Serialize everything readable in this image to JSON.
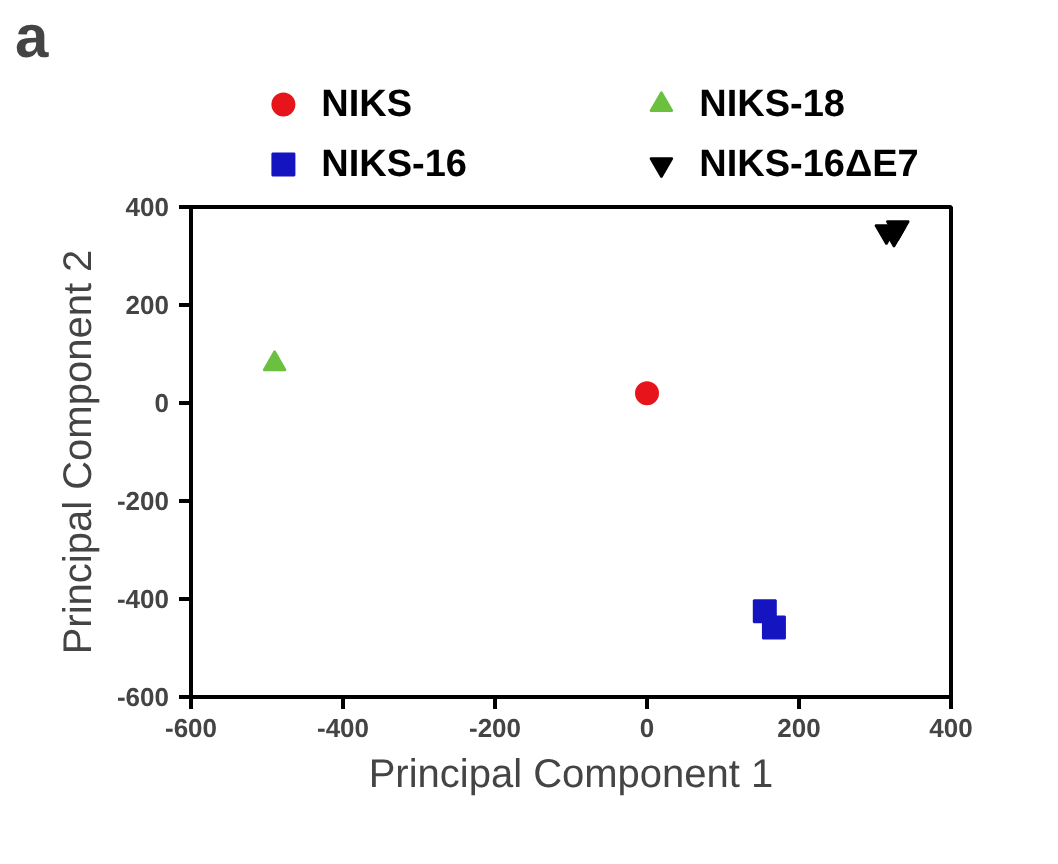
{
  "chart_data": {
    "type": "scatter",
    "xlabel": "Principal Component 1",
    "ylabel": "Principal Component 2",
    "annotations": [
      "a"
    ],
    "xlim": [
      -600,
      400
    ],
    "ylim": [
      -600,
      400
    ],
    "xticks": [
      -600,
      -400,
      -200,
      0,
      200,
      400
    ],
    "yticks": [
      -600,
      -400,
      -200,
      0,
      200,
      400
    ],
    "grid": false,
    "legend": "top",
    "series": [
      {
        "name": "NIKS",
        "color": "#e8141c",
        "marker": "circle",
        "x": [
          0
        ],
        "values": [
          20
        ]
      },
      {
        "name": "NIKS-16",
        "color": "#1414c0",
        "marker": "square",
        "x": [
          155,
          167
        ],
        "values": [
          -425,
          -458
        ]
      },
      {
        "name": "NIKS-18",
        "color": "#6cc040",
        "marker": "triangle",
        "x": [
          -490
        ],
        "values": [
          80
        ]
      },
      {
        "name": "NIKS-16ΔE7",
        "color": "#000000",
        "marker": "triangle_down",
        "x": [
          315,
          330,
          325
        ],
        "values": [
          350,
          358,
          345
        ]
      }
    ]
  }
}
